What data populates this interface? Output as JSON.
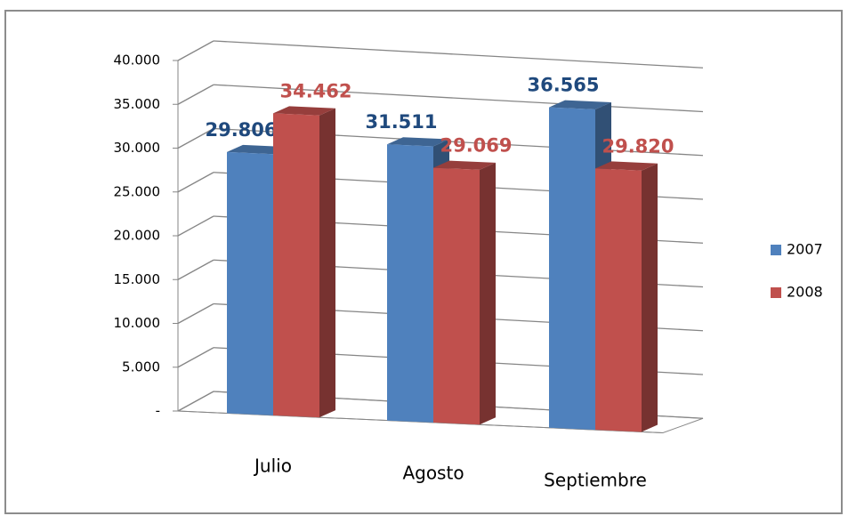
{
  "chart_data": {
    "type": "bar3d",
    "categories": [
      "Julio",
      "Agosto",
      "Septiembre"
    ],
    "series": [
      {
        "name": "2007",
        "color": "#4f81bd",
        "label_color": "#1f497d",
        "values": [
          29806,
          31511,
          36565
        ],
        "value_labels": [
          "29.806",
          "31.511",
          "36.565"
        ]
      },
      {
        "name": "2008",
        "color": "#c0504d",
        "label_color": "#c0504d",
        "values": [
          34462,
          29069,
          29820
        ],
        "value_labels": [
          "34.462",
          "29.069",
          "29.820"
        ]
      }
    ],
    "ylim": [
      0,
      40000
    ],
    "yticks": [
      {
        "value": 0,
        "label": "-"
      },
      {
        "value": 5000,
        "label": "5.000"
      },
      {
        "value": 10000,
        "label": "10.000"
      },
      {
        "value": 15000,
        "label": "15.000"
      },
      {
        "value": 20000,
        "label": "20.000"
      },
      {
        "value": 25000,
        "label": "25.000"
      },
      {
        "value": 30000,
        "label": "30.000"
      },
      {
        "value": 35000,
        "label": "35.000"
      },
      {
        "value": 40000,
        "label": "40.000"
      }
    ],
    "grid": true,
    "legend": "right"
  }
}
